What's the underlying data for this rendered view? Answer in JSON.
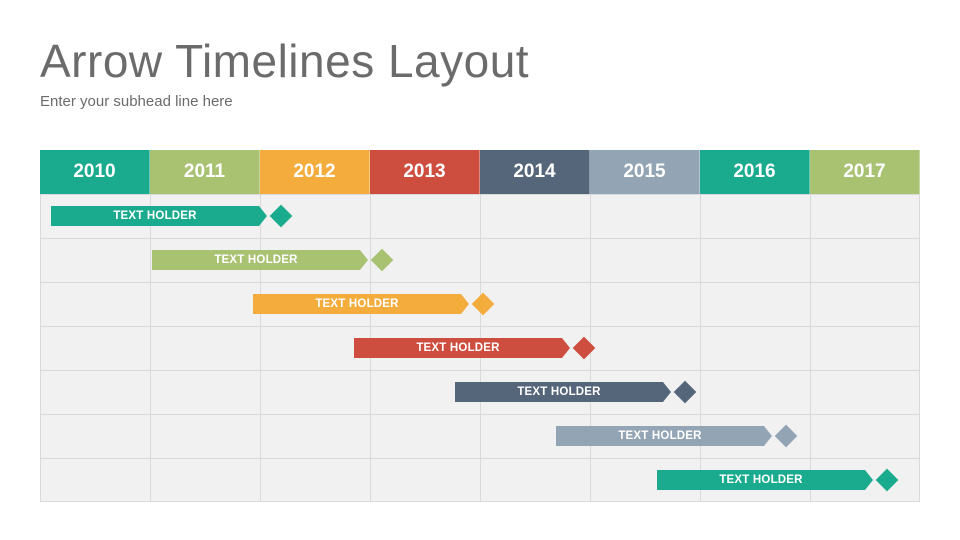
{
  "header": {
    "title": "Arrow Timelines Layout",
    "subtitle": "Enter your subhead line here"
  },
  "years": [
    {
      "label": "2010",
      "color": "#1aab8f"
    },
    {
      "label": "2011",
      "color": "#a8c272"
    },
    {
      "label": "2012",
      "color": "#f4ac3c"
    },
    {
      "label": "2013",
      "color": "#cd4e3f"
    },
    {
      "label": "2014",
      "color": "#55657a"
    },
    {
      "label": "2015",
      "color": "#93a4b5"
    },
    {
      "label": "2016",
      "color": "#1aab8f"
    },
    {
      "label": "2017",
      "color": "#a8c272"
    }
  ],
  "tasks": [
    {
      "label": "TEXT HOLDER",
      "color": "#1aab8f"
    },
    {
      "label": "TEXT HOLDER",
      "color": "#a8c272"
    },
    {
      "label": "TEXT HOLDER",
      "color": "#f4ac3c"
    },
    {
      "label": "TEXT HOLDER",
      "color": "#cd4e3f"
    },
    {
      "label": "TEXT HOLDER",
      "color": "#55657a"
    },
    {
      "label": "TEXT HOLDER",
      "color": "#93a4b5"
    },
    {
      "label": "TEXT HOLDER",
      "color": "#1aab8f"
    }
  ]
}
